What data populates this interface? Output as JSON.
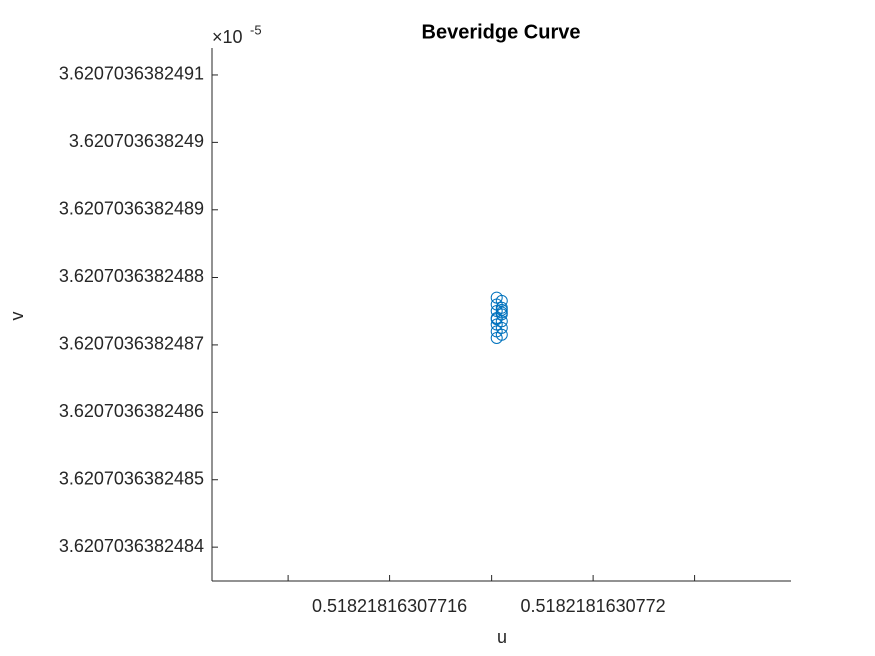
{
  "chart_data": {
    "type": "scatter",
    "title": "Beveridge Curve",
    "x_label": "u",
    "y_label": "v",
    "y_multiplier": "×10",
    "y_exponent": "-5",
    "color": "#0072BD",
    "x": [
      0.518218163077181,
      0.518218163077182,
      0.518218163077181,
      0.518218163077182,
      0.518218163077181,
      0.518218163077182,
      0.518218163077181,
      0.518218163077182,
      0.518218163077181,
      0.518218163077182,
      0.518218163077181,
      0.518218163077182,
      0.518218163077181,
      0.518218163077182,
      0.518218163077181,
      0.518218163077182
    ],
    "values": [
      3.62070363824877,
      3.620703638248765,
      3.62070363824876,
      3.620703638248755,
      3.62070363824875,
      3.620703638248745,
      3.62070363824874,
      3.620703638248735,
      3.62070363824873,
      3.620703638248725,
      3.62070363824872,
      3.620703638248715,
      3.62070363824871,
      3.620703638248752,
      3.620703638248738,
      3.620703638248748
    ],
    "xlim": [
      0.518218163077125,
      0.518218163077239
    ],
    "xticks": [
      {
        "value": 0.51821816307714,
        "label": null
      },
      0.51821816307716,
      {
        "value": 0.51821816307718,
        "label": null
      },
      0.5182181630772,
      {
        "value": 0.51821816307722,
        "label": null
      }
    ],
    "ylim": [
      3.62070363824835,
      3.62070363824914
    ],
    "yticks": [
      3.6207036382484,
      3.6207036382485,
      3.6207036382486,
      3.6207036382487,
      3.6207036382488,
      3.6207036382489,
      3.620703638249,
      3.6207036382491
    ],
    "grid": false
  }
}
